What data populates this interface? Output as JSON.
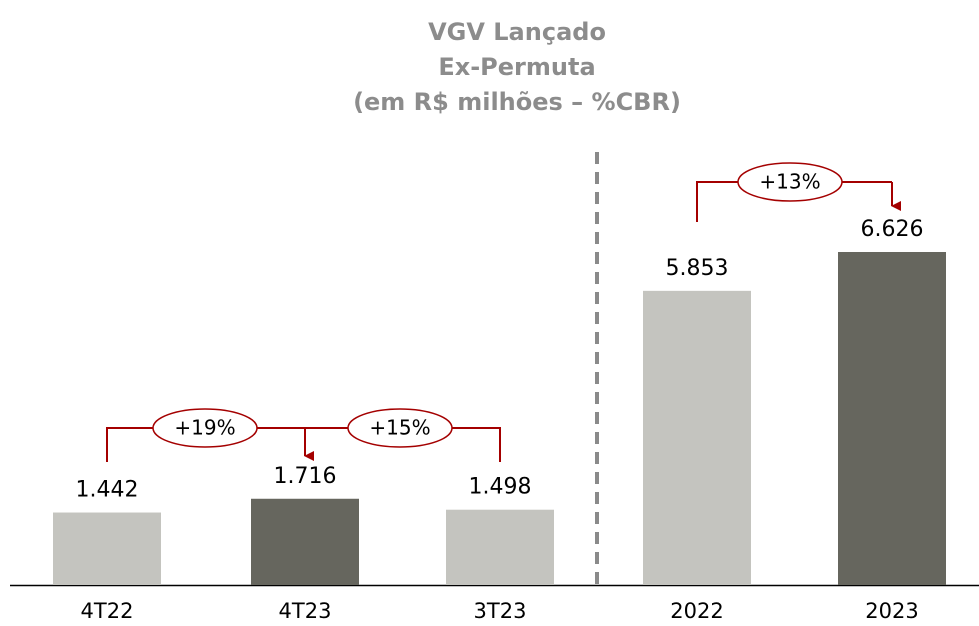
{
  "chart_data": {
    "type": "bar",
    "title": [
      "VGV Lançado",
      "Ex-Permuta",
      "(em R$ milhões – %CBR)"
    ],
    "categories": [
      "4T22",
      "4T23",
      "3T23",
      "2022",
      "2023"
    ],
    "values": [
      1442,
      1716,
      1498,
      5853,
      6626
    ],
    "value_labels": [
      "1.442",
      "1.716",
      "1.498",
      "5.853",
      "6.626"
    ],
    "colors": [
      "#c4c4bf",
      "#66665e",
      "#c4c4bf",
      "#c4c4bf",
      "#66665e"
    ],
    "annotations": [
      "+19%",
      "+15%",
      "+13%"
    ]
  }
}
